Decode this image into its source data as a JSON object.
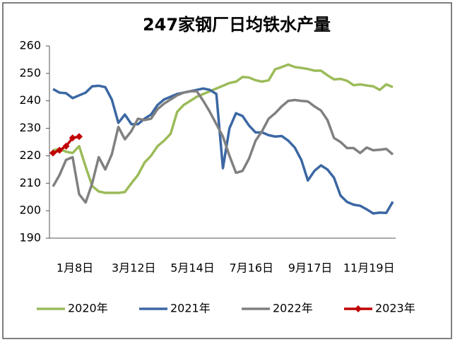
{
  "chart_data": {
    "type": "line",
    "title": "247家钢厂日均铁水产量",
    "categories": [
      null,
      null,
      null,
      null,
      "1月8日",
      null,
      null,
      null,
      null,
      null,
      null,
      null,
      null,
      "3月12日",
      null,
      null,
      null,
      null,
      null,
      null,
      null,
      null,
      "5月14日",
      null,
      null,
      null,
      null,
      null,
      null,
      null,
      null,
      "7月16日",
      null,
      null,
      null,
      null,
      null,
      null,
      null,
      null,
      "9月17日",
      null,
      null,
      null,
      null,
      null,
      null,
      null,
      null,
      "11月19日",
      null,
      null,
      null
    ],
    "series": [
      {
        "name": "2020年",
        "color": "#9bbb59",
        "values": [
          222,
          222.5,
          221.5,
          221,
          223.5,
          216,
          209,
          207,
          206.5,
          206.5,
          206.5,
          206.8,
          210,
          213,
          217.5,
          220,
          223.5,
          225.5,
          228,
          236,
          238.5,
          240,
          241.5,
          242.5,
          243.5,
          244.5,
          245.5,
          246.5,
          247,
          248.7,
          248.5,
          247.5,
          247,
          247.5,
          251.5,
          252.3,
          253.2,
          252.3,
          252,
          251.6,
          251,
          251,
          249.3,
          247.8,
          248,
          247.3,
          245.7,
          246,
          245.6,
          245.3,
          244,
          246,
          245
        ]
      },
      {
        "name": "2021年",
        "color": "#3b67a3",
        "values": [
          244.3,
          243,
          242.8,
          241,
          242,
          243,
          245.3,
          245.5,
          245,
          240.5,
          232,
          235,
          231.5,
          231.5,
          233.5,
          235,
          238.5,
          240.5,
          241.5,
          242.5,
          243,
          243.5,
          244,
          244.5,
          244,
          242.5,
          215.5,
          230,
          235.5,
          234.5,
          231,
          228.5,
          228.5,
          227.5,
          227,
          227.2,
          225.5,
          223,
          218.5,
          211,
          214.5,
          216.5,
          215,
          212,
          205.5,
          203.2,
          202.2,
          201.8,
          200.5,
          199,
          199.3,
          199.2,
          203.3
        ]
      },
      {
        "name": "2022年",
        "color": "#808080",
        "values": [
          208.8,
          213,
          218.5,
          219.5,
          206,
          203,
          210,
          219.5,
          215,
          220.5,
          230.5,
          226,
          229,
          233.5,
          233,
          233.5,
          237,
          239,
          240.5,
          242,
          243,
          243.5,
          243.5,
          240,
          236,
          231.5,
          227,
          220,
          213.8,
          214.5,
          219,
          225.5,
          229,
          233.5,
          235.5,
          238,
          240,
          240.3,
          240,
          239.8,
          238,
          236.5,
          233,
          226.5,
          225,
          222.8,
          222.8,
          221,
          223,
          222,
          222.2,
          222.5,
          220.5
        ]
      },
      {
        "name": "2023年",
        "color": "#c00000",
        "markers": true,
        "values": [
          221,
          222,
          223.5,
          226.5,
          227,
          null,
          null,
          null,
          null,
          null,
          null,
          null,
          null,
          null,
          null,
          null,
          null,
          null,
          null,
          null,
          null,
          null,
          null,
          null,
          null,
          null,
          null,
          null,
          null,
          null,
          null,
          null,
          null,
          null,
          null,
          null,
          null,
          null,
          null,
          null,
          null,
          null,
          null,
          null,
          null,
          null,
          null,
          null,
          null,
          null,
          null,
          null,
          null
        ]
      }
    ],
    "ylim": [
      190,
      260
    ],
    "yticks": [
      190,
      200,
      210,
      220,
      230,
      240,
      250,
      260
    ],
    "grid": false,
    "legend": "bottom"
  }
}
